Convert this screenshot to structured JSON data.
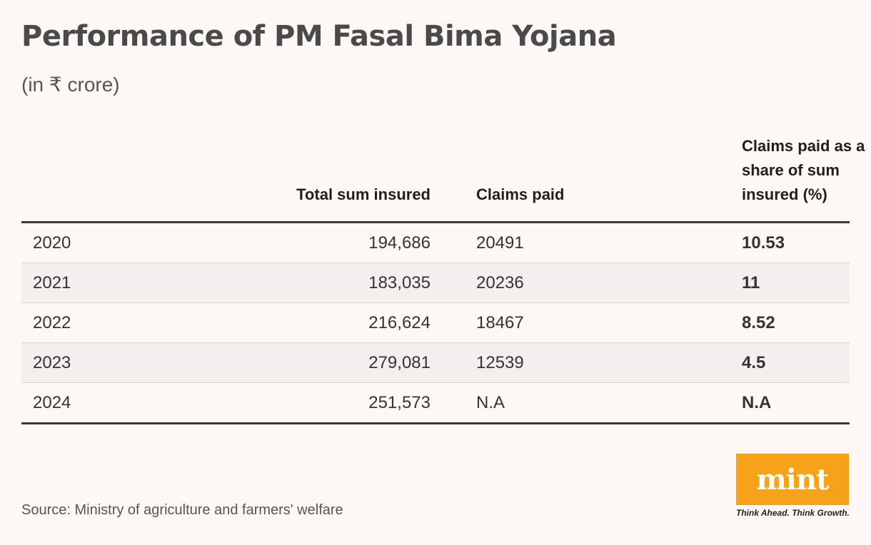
{
  "header": {
    "title": "Performance of PM Fasal Bima Yojana",
    "subtitle": "(in ₹ crore)"
  },
  "table": {
    "columns": [
      "",
      "Total sum insured",
      "Claims paid",
      "Claims paid as a share of sum insured (%)"
    ],
    "rows": [
      [
        "2020",
        "194,686",
        "20491",
        "10.53"
      ],
      [
        "2021",
        "183,035",
        "20236",
        "11"
      ],
      [
        "2022",
        "216,624",
        "18467",
        "8.52"
      ],
      [
        "2023",
        "279,081",
        "12539",
        "4.5"
      ],
      [
        "2024",
        "251,573",
        "N.A",
        "N.A"
      ]
    ]
  },
  "chart_data": {
    "type": "table",
    "title": "Performance of PM Fasal Bima Yojana",
    "subtitle": "(in ₹ crore)",
    "columns": [
      "",
      "Total sum insured",
      "Claims paid",
      "Claims paid as a share of sum insured (%)"
    ],
    "rows": [
      [
        "2020",
        194686,
        20491,
        10.53
      ],
      [
        "2021",
        183035,
        20236,
        11
      ],
      [
        "2022",
        216624,
        18467,
        8.52
      ],
      [
        "2023",
        279081,
        12539,
        4.5
      ],
      [
        "2024",
        251573,
        "N.A",
        "N.A"
      ]
    ]
  },
  "footer": {
    "source": "Source: Ministry of agriculture and farmers' welfare",
    "logo_text": "mint",
    "tagline": "Think Ahead. Think Growth."
  },
  "colors": {
    "background": "#fdf8f6",
    "logo": "#f7a21b"
  }
}
